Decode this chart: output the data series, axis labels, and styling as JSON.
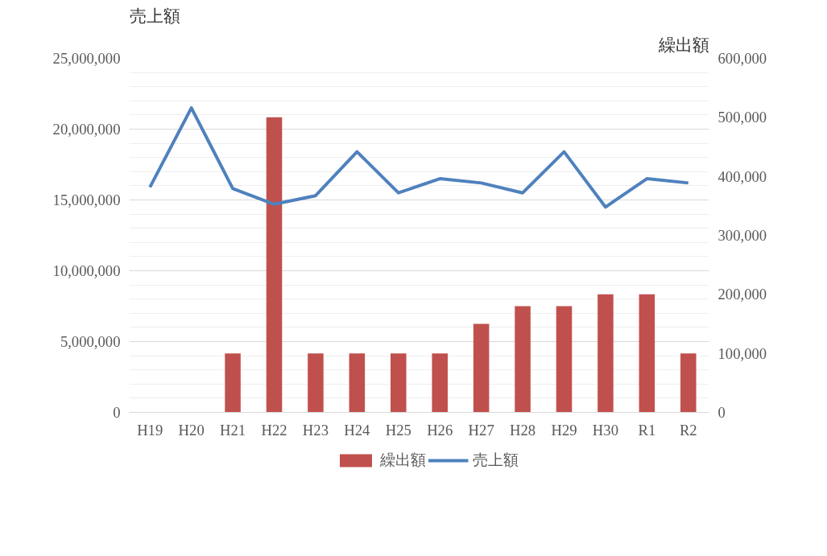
{
  "chart_data": {
    "type": "bar",
    "ylabel": "売上額",
    "y2label": "繰出額",
    "categories": [
      "H19",
      "H20",
      "H21",
      "H22",
      "H23",
      "H24",
      "H25",
      "H26",
      "H27",
      "H28",
      "H29",
      "H30",
      "R1",
      "R2"
    ],
    "series": [
      {
        "name": "繰出額",
        "axis": "y2",
        "color": "#c0504d",
        "values": [
          0,
          0,
          100000,
          500000,
          100000,
          100000,
          100000,
          100000,
          150000,
          180000,
          180000,
          200000,
          200000,
          100000
        ]
      },
      {
        "name": "売上額",
        "type": "line",
        "color": "#4f81bd",
        "values": [
          15900000,
          21500000,
          15800000,
          14700000,
          15300000,
          18400000,
          15500000,
          16500000,
          16200000,
          15500000,
          18400000,
          14500000,
          16500000,
          16200000
        ]
      }
    ],
    "ylim": [
      0,
      25000000
    ],
    "yticks": [
      {
        "value": 0,
        "label": "0"
      },
      {
        "value": 5000000,
        "label": "5,000,000"
      },
      {
        "value": 10000000,
        "label": "10,000,000"
      },
      {
        "value": 15000000,
        "label": "15,000,000"
      },
      {
        "value": 20000000,
        "label": "20,000,000"
      },
      {
        "value": 25000000,
        "label": "25,000,000"
      }
    ],
    "y2lim": [
      0,
      600000
    ],
    "y2ticks": [
      {
        "value": 0,
        "label": "0"
      },
      {
        "value": 100000,
        "label": "100,000"
      },
      {
        "value": 200000,
        "label": "200,000"
      },
      {
        "value": 300000,
        "label": "300,000"
      },
      {
        "value": 400000,
        "label": "400,000"
      },
      {
        "value": 500000,
        "label": "500,000"
      },
      {
        "value": 600000,
        "label": "600,000"
      }
    ],
    "grid": "y",
    "legend": "bottom",
    "marker": "none",
    "line_style": "solid"
  }
}
